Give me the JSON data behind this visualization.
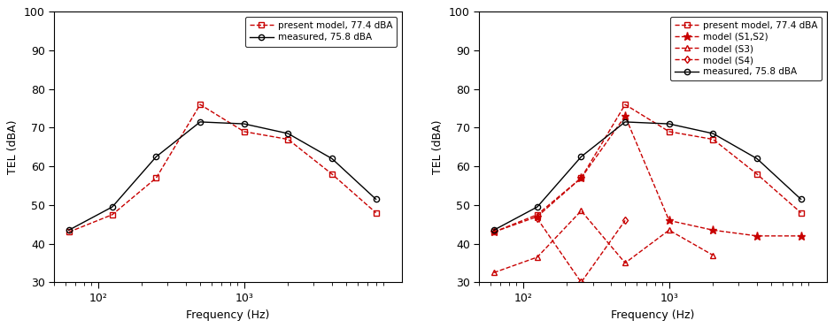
{
  "freqs": [
    63,
    125,
    250,
    500,
    1000,
    2000,
    4000,
    8000
  ],
  "present_model": [
    43.0,
    47.5,
    57.0,
    76.0,
    69.0,
    67.0,
    58.0,
    48.0
  ],
  "measured": [
    43.5,
    49.5,
    62.5,
    71.5,
    71.0,
    68.5,
    62.0,
    51.5
  ],
  "s1s2_freqs": [
    63,
    125,
    250,
    500,
    1000,
    2000,
    4000,
    8000
  ],
  "s1s2_vals": [
    43.0,
    47.0,
    57.0,
    73.0,
    46.0,
    43.5,
    42.0,
    42.0
  ],
  "s3_freqs": [
    63,
    125,
    250,
    500,
    1000,
    2000
  ],
  "s3_vals": [
    32.5,
    36.5,
    48.5,
    35.0,
    43.5,
    37.0
  ],
  "s4_freqs": [
    125,
    250,
    500
  ],
  "s4_vals": [
    46.5,
    30.0,
    46.0
  ],
  "xlabel": "Frequency (Hz)",
  "ylabel": "TEL (dBA)",
  "ylim": [
    30,
    100
  ],
  "yticks": [
    30,
    40,
    50,
    60,
    70,
    80,
    90,
    100
  ],
  "xlim": [
    50,
    12000
  ],
  "xtick_locs": [
    100,
    1000
  ],
  "xtick_labels": [
    "10²",
    "10³"
  ],
  "legend1_labels": [
    "present model, 77.4 dBA",
    "measured, 75.8 dBA"
  ],
  "legend2_labels": [
    "present model, 77.4 dBA",
    "model (S1,S2)",
    "model (S3)",
    "model (S4)",
    "measured, 75.8 dBA"
  ],
  "red": "#c80000",
  "black": "#000000",
  "bg": "#ffffff",
  "tick_fontsize": 9,
  "label_fontsize": 9,
  "legend_fontsize": 7.5,
  "linewidth": 1.0,
  "markersize": 4.5
}
